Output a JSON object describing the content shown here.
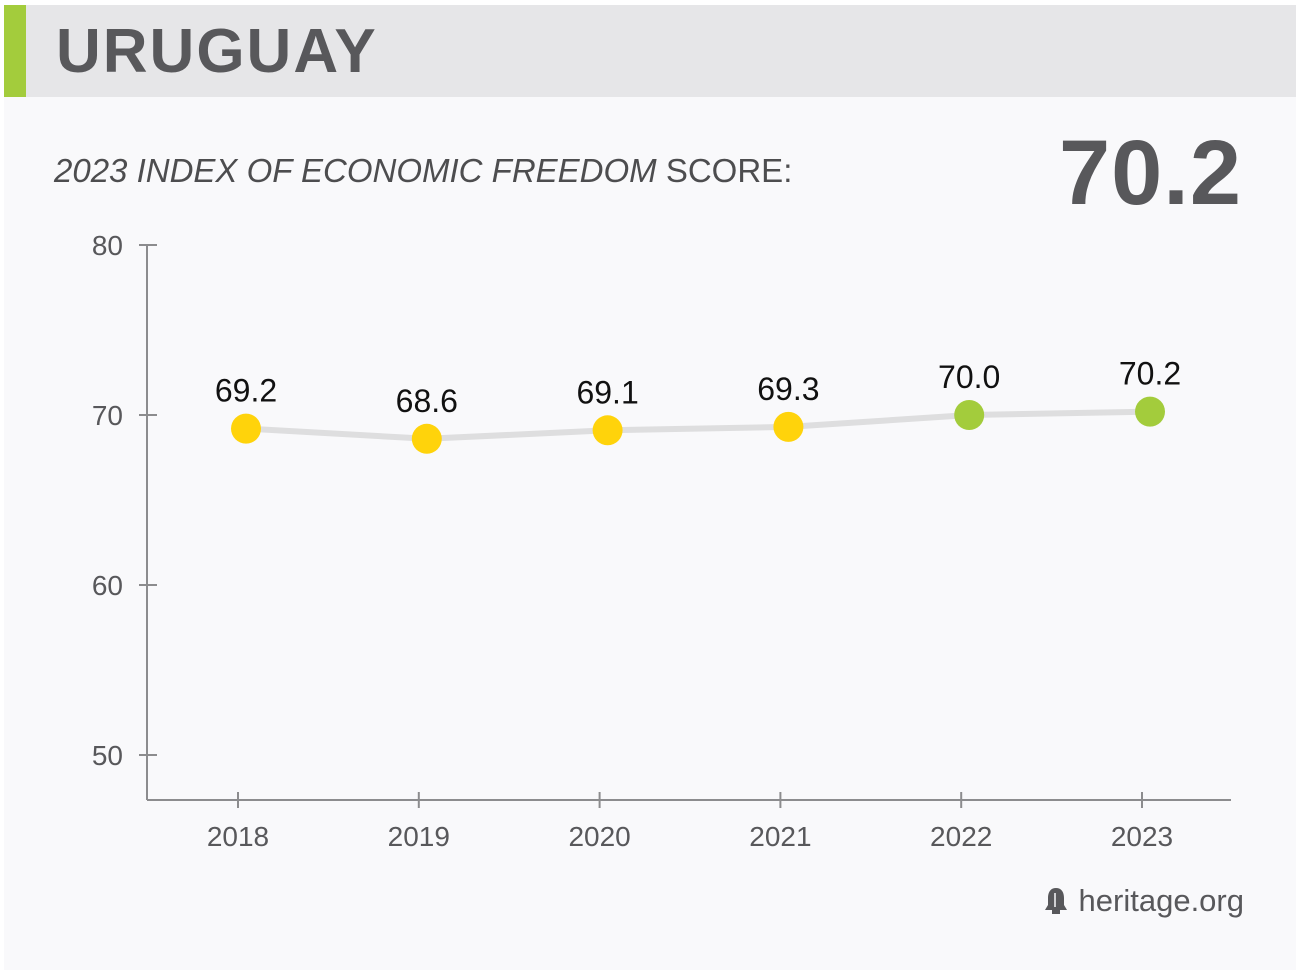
{
  "header": {
    "country": "URUGUAY"
  },
  "subtitle": {
    "index_name": "2023 INDEX OF ECONOMIC FREEDOM",
    "suffix": " SCORE:"
  },
  "score": "70.2",
  "source": {
    "icon": "liberty-bell-icon",
    "text": "heritage.org"
  },
  "colors": {
    "accent": "#a3cc3c",
    "point_yellow": "#ffd30b",
    "point_green": "#a3cc3c",
    "line": "#dededf",
    "axis": "#8c8c8e"
  },
  "chart_data": {
    "type": "line",
    "x": [
      "2018",
      "2019",
      "2020",
      "2021",
      "2022",
      "2023"
    ],
    "values": [
      69.2,
      68.6,
      69.1,
      69.3,
      70.0,
      70.2
    ],
    "labels": [
      "69.2",
      "68.6",
      "69.1",
      "69.3",
      "70.0",
      "70.2"
    ],
    "point_colors": [
      "#ffd30b",
      "#ffd30b",
      "#ffd30b",
      "#ffd30b",
      "#a3cc3c",
      "#a3cc3c"
    ],
    "ylim": [
      50,
      80
    ],
    "yticks": [
      50,
      60,
      70,
      80
    ],
    "grid": false,
    "title": "",
    "xlabel": "",
    "ylabel": ""
  }
}
